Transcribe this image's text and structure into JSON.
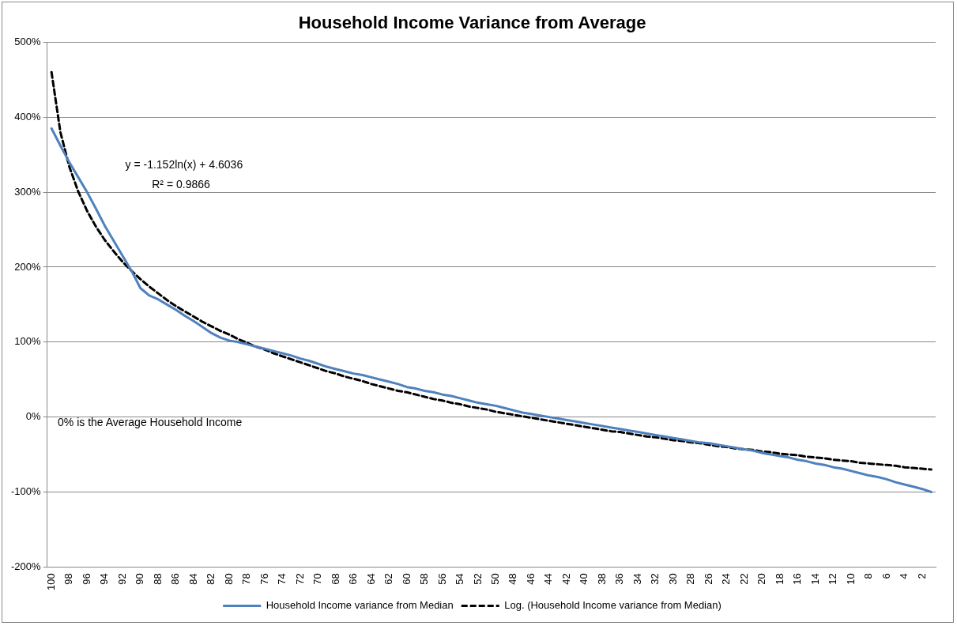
{
  "chart_data": {
    "type": "line",
    "title": "Household Income Variance from Average",
    "categories": [
      "100",
      null,
      "98",
      null,
      "96",
      null,
      "94",
      null,
      "92",
      null,
      "90",
      null,
      "88",
      null,
      "86",
      null,
      "84",
      null,
      "82",
      null,
      "80",
      null,
      "78",
      null,
      "76",
      null,
      "74",
      null,
      "72",
      null,
      "70",
      null,
      "68",
      null,
      "66",
      null,
      "64",
      null,
      "62",
      null,
      "60",
      null,
      "58",
      null,
      "56",
      null,
      "54",
      null,
      "52",
      null,
      "50",
      null,
      "48",
      null,
      "46",
      null,
      "44",
      null,
      "42",
      null,
      "40",
      null,
      "38",
      null,
      "36",
      null,
      "34",
      null,
      "32",
      null,
      "30",
      null,
      "28",
      null,
      "26",
      null,
      "24",
      null,
      "22",
      null,
      "20",
      null,
      "18",
      null,
      "16",
      null,
      "14",
      null,
      "12",
      null,
      "10",
      null,
      "8",
      null,
      "6",
      null,
      "4",
      null,
      "2",
      null
    ],
    "series": [
      {
        "name": "Household Income variance from Median",
        "color": "#4f81bd",
        "values": [
          385,
          362,
          340,
          320,
          300,
          278,
          255,
          235,
          215,
          195,
          172,
          162,
          157,
          150,
          143,
          135,
          128,
          120,
          112,
          106,
          102,
          100,
          97,
          94,
          91,
          88,
          85,
          82,
          78,
          75,
          71,
          67,
          64,
          61,
          58,
          56,
          53,
          50,
          47,
          44,
          40,
          38,
          35,
          33,
          30,
          28,
          25,
          22,
          19,
          17,
          15,
          12,
          9,
          6,
          4,
          2,
          0,
          -2,
          -4,
          -6,
          -8,
          -10,
          -12,
          -14,
          -16,
          -18,
          -20,
          -22,
          -24,
          -26,
          -28,
          -30,
          -32,
          -34,
          -35,
          -37,
          -39,
          -41,
          -43,
          -45,
          -48,
          -50,
          -52,
          -54,
          -57,
          -59,
          -62,
          -64,
          -67,
          -69,
          -72,
          -75,
          -78,
          -80,
          -83,
          -87,
          -90,
          -93,
          -96,
          -100
        ]
      },
      {
        "name": "Log. (Household Income variance from Median)",
        "color": "#000000",
        "line_style": "dashed",
        "values": [
          460,
          380,
          334,
          301,
          275,
          254,
          236,
          221,
          207,
          195,
          184,
          174,
          165,
          156,
          148,
          141,
          134,
          127,
          121,
          115,
          110,
          104,
          99,
          94,
          90,
          85,
          81,
          77,
          73,
          69,
          65,
          61,
          58,
          54,
          51,
          48,
          44,
          41,
          38,
          35,
          33,
          30,
          27,
          24,
          22,
          19,
          17,
          14,
          12,
          10,
          7,
          5,
          3,
          1,
          -1,
          -3,
          -5,
          -7,
          -9,
          -11,
          -13,
          -15,
          -17,
          -19,
          -20,
          -22,
          -24,
          -26,
          -27,
          -29,
          -31,
          -32,
          -34,
          -35,
          -37,
          -39,
          -40,
          -42,
          -43,
          -44,
          -46,
          -47,
          -49,
          -50,
          -51,
          -53,
          -54,
          -55,
          -57,
          -58,
          -59,
          -61,
          -62,
          -63,
          -64,
          -65,
          -67,
          -68,
          -69,
          -70
        ]
      }
    ],
    "ylim": [
      -200,
      500
    ],
    "yticks": [
      {
        "value": -200,
        "label": "-200%"
      },
      {
        "value": -100,
        "label": "-100%"
      },
      {
        "value": 0,
        "label": "0%"
      },
      {
        "value": 100,
        "label": "100%"
      },
      {
        "value": 200,
        "label": "200%"
      },
      {
        "value": 300,
        "label": "300%"
      },
      {
        "value": 400,
        "label": "400%"
      },
      {
        "value": 500,
        "label": "500%"
      }
    ],
    "grid": "y",
    "legend": "bottom",
    "marker": "none",
    "annotations": [
      "y = -1.152ln(x) + 4.6036",
      "R² = 0.9866",
      "0% is the Average Household Income"
    ]
  }
}
